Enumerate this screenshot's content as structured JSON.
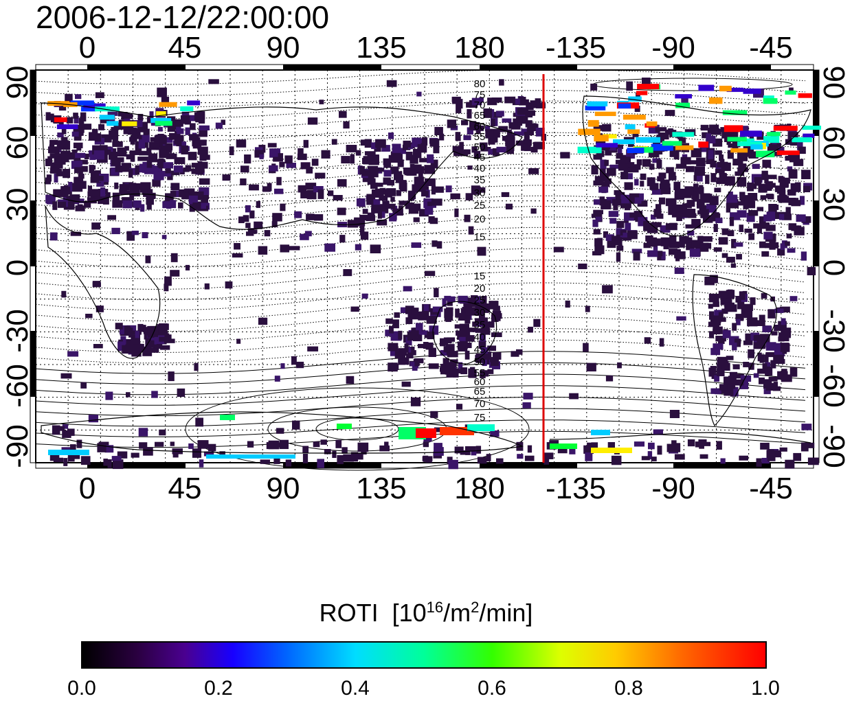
{
  "title": "2006-12-12/22:00:00",
  "map": {
    "lon_labels_top": [
      "0",
      "45",
      "90",
      "135",
      "180",
      "-135",
      "-90",
      "-45"
    ],
    "lon_labels_bottom": [
      "0",
      "45",
      "90",
      "135",
      "180",
      "-135",
      "-90",
      "-45"
    ],
    "lat_labels_left": [
      "-90",
      "-60",
      "-30",
      "0",
      "30",
      "60",
      "90"
    ],
    "lat_labels_right": [
      "-90",
      "-60",
      "-30",
      "0",
      "30",
      "60",
      "90"
    ],
    "contour_labels_north": [
      "80",
      "75",
      "70",
      "65",
      "60",
      "55",
      "50",
      "45",
      "40",
      "35",
      "30",
      "25",
      "20",
      "15"
    ],
    "contour_labels_south": [
      "15",
      "20",
      "25",
      "30",
      "35",
      "40",
      "45",
      "50",
      "55",
      "60",
      "65",
      "70",
      "75"
    ],
    "terminator_line_color": "#dd0000",
    "coastline_color": "#000000"
  },
  "colorbar": {
    "label": "ROTI",
    "unit_prefix": "[10",
    "unit_exp1": "16",
    "unit_mid": "/m",
    "unit_exp2": "2",
    "unit_suffix": "/min]",
    "ticks": [
      "0.0",
      "0.2",
      "0.4",
      "0.6",
      "0.8",
      "1.0"
    ],
    "range": [
      0.0,
      1.0
    ]
  }
}
